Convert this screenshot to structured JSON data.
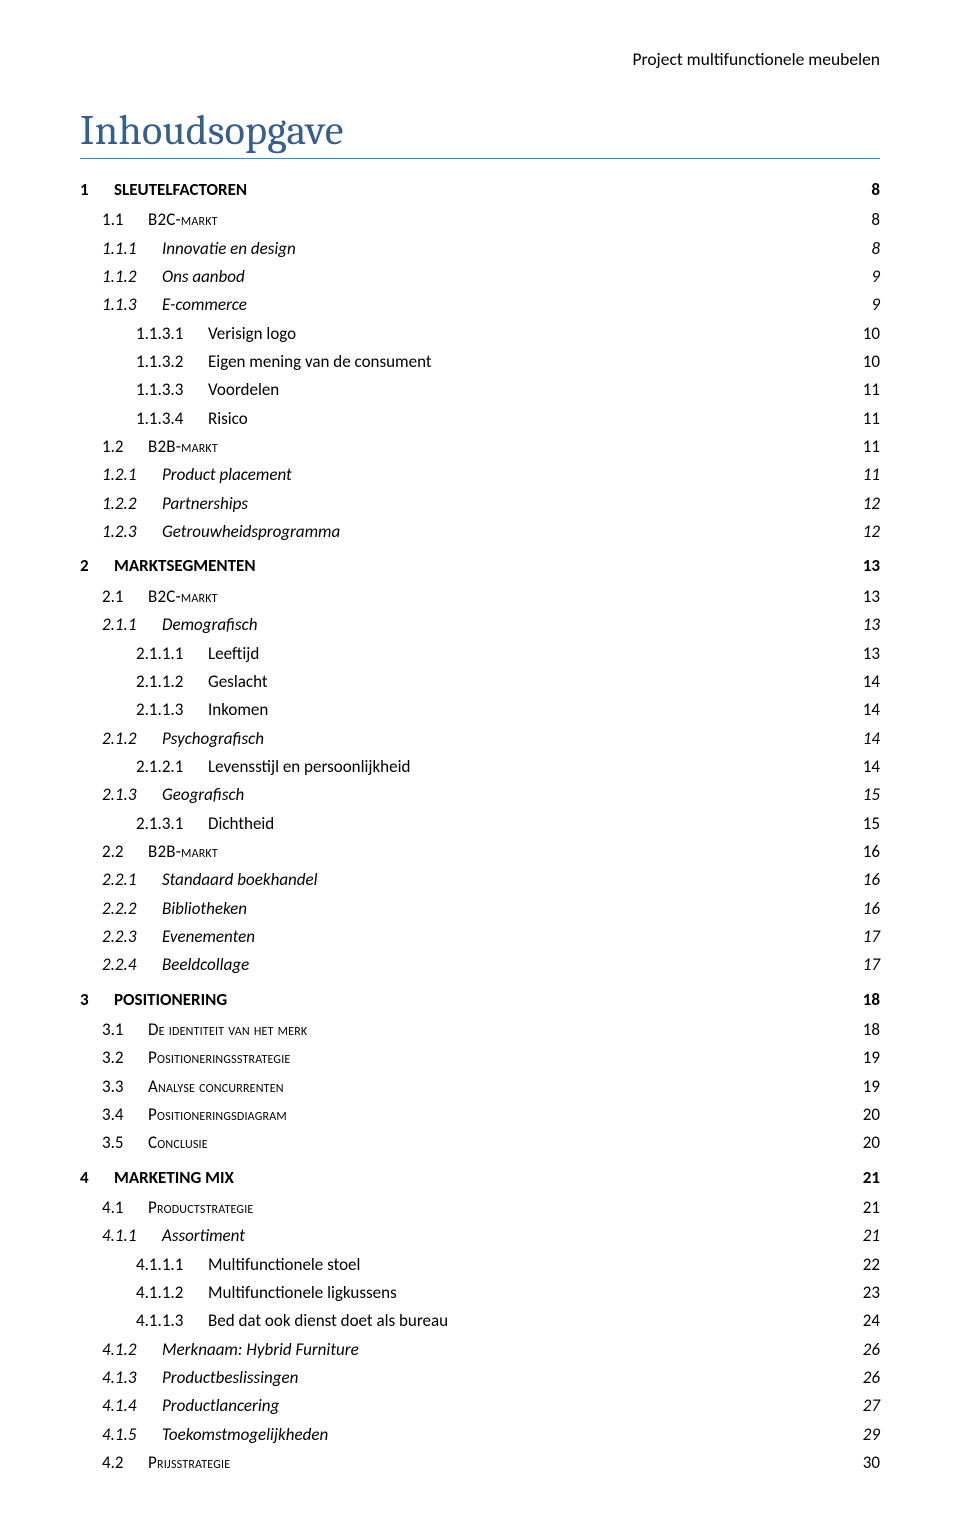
{
  "document": {
    "running_header": "Project multifunctionele meubelen",
    "title": "Inhoudsopgave",
    "colors": {
      "title_color": "#365f91",
      "rule_color": "#4f81bd",
      "text_color": "#000000",
      "background": "#ffffff"
    },
    "fonts": {
      "title_family": "Cambria, Georgia, serif",
      "body_family": "Calibri, Segoe UI, Arial, sans-serif",
      "title_size_pt": 32,
      "body_size_pt": 12
    }
  },
  "toc": [
    {
      "level": 1,
      "num": "1",
      "title": "SLEUTELFACTOREN",
      "page": "8"
    },
    {
      "level": 2,
      "num": "1.1",
      "title": "B2C-markt",
      "page": "8"
    },
    {
      "level": 3,
      "num": "1.1.1",
      "title": "Innovatie en design",
      "page": "8"
    },
    {
      "level": 3,
      "num": "1.1.2",
      "title": "Ons aanbod",
      "page": "9"
    },
    {
      "level": 3,
      "num": "1.1.3",
      "title": "E-commerce",
      "page": "9"
    },
    {
      "level": 4,
      "num": "1.1.3.1",
      "title": "Verisign logo",
      "page": "10"
    },
    {
      "level": 4,
      "num": "1.1.3.2",
      "title": "Eigen mening van de consument",
      "page": "10"
    },
    {
      "level": 4,
      "num": "1.1.3.3",
      "title": "Voordelen",
      "page": "11"
    },
    {
      "level": 4,
      "num": "1.1.3.4",
      "title": "Risico",
      "page": "11"
    },
    {
      "level": 2,
      "num": "1.2",
      "title": "B2B-markt",
      "page": "11"
    },
    {
      "level": 3,
      "num": "1.2.1",
      "title": "Product placement",
      "page": "11"
    },
    {
      "level": 3,
      "num": "1.2.2",
      "title": "Partnerships",
      "page": "12"
    },
    {
      "level": 3,
      "num": "1.2.3",
      "title": "Getrouwheidsprogramma",
      "page": "12"
    },
    {
      "level": 1,
      "num": "2",
      "title": "MARKTSEGMENTEN",
      "page": "13"
    },
    {
      "level": 2,
      "num": "2.1",
      "title": "B2C-markt",
      "page": "13"
    },
    {
      "level": 3,
      "num": "2.1.1",
      "title": "Demografisch",
      "page": "13"
    },
    {
      "level": 4,
      "num": "2.1.1.1",
      "title": "Leeftijd",
      "page": "13"
    },
    {
      "level": 4,
      "num": "2.1.1.2",
      "title": "Geslacht",
      "page": "14"
    },
    {
      "level": 4,
      "num": "2.1.1.3",
      "title": "Inkomen",
      "page": "14"
    },
    {
      "level": 3,
      "num": "2.1.2",
      "title": "Psychografisch",
      "page": "14"
    },
    {
      "level": 4,
      "num": "2.1.2.1",
      "title": "Levensstijl en persoonlijkheid",
      "page": "14"
    },
    {
      "level": 3,
      "num": "2.1.3",
      "title": "Geografisch",
      "page": "15"
    },
    {
      "level": 4,
      "num": "2.1.3.1",
      "title": "Dichtheid",
      "page": "15"
    },
    {
      "level": 2,
      "num": "2.2",
      "title": "B2B-markt",
      "page": "16"
    },
    {
      "level": 3,
      "num": "2.2.1",
      "title": "Standaard boekhandel",
      "page": "16"
    },
    {
      "level": 3,
      "num": "2.2.2",
      "title": "Bibliotheken",
      "page": "16"
    },
    {
      "level": 3,
      "num": "2.2.3",
      "title": "Evenementen",
      "page": "17"
    },
    {
      "level": 3,
      "num": "2.2.4",
      "title": "Beeldcollage",
      "page": "17"
    },
    {
      "level": 1,
      "num": "3",
      "title": "POSITIONERING",
      "page": "18"
    },
    {
      "level": 2,
      "num": "3.1",
      "title": "De identiteit van het merk",
      "page": "18"
    },
    {
      "level": 2,
      "num": "3.2",
      "title": "Positioneringsstrategie",
      "page": "19"
    },
    {
      "level": 2,
      "num": "3.3",
      "title": "Analyse concurrenten",
      "page": "19"
    },
    {
      "level": 2,
      "num": "3.4",
      "title": "Positioneringsdiagram",
      "page": "20"
    },
    {
      "level": 2,
      "num": "3.5",
      "title": "Conclusie",
      "page": "20"
    },
    {
      "level": 1,
      "num": "4",
      "title": "MARKETING MIX",
      "page": "21"
    },
    {
      "level": 2,
      "num": "4.1",
      "title": "Productstrategie",
      "page": "21"
    },
    {
      "level": 3,
      "num": "4.1.1",
      "title": "Assortiment",
      "page": "21"
    },
    {
      "level": 4,
      "num": "4.1.1.1",
      "title": "Multifunctionele stoel",
      "page": "22"
    },
    {
      "level": 4,
      "num": "4.1.1.2",
      "title": "Multifunctionele ligkussens",
      "page": "23"
    },
    {
      "level": 4,
      "num": "4.1.1.3",
      "title": "Bed dat ook dienst doet als bureau",
      "page": "24"
    },
    {
      "level": 3,
      "num": "4.1.2",
      "title": "Merknaam: Hybrid Furniture",
      "page": "26"
    },
    {
      "level": 3,
      "num": "4.1.3",
      "title": "Productbeslissingen",
      "page": "26"
    },
    {
      "level": 3,
      "num": "4.1.4",
      "title": "Productlancering",
      "page": "27"
    },
    {
      "level": 3,
      "num": "4.1.5",
      "title": "Toekomstmogelijkheden",
      "page": "29"
    },
    {
      "level": 2,
      "num": "4.2",
      "title": "Prijsstrategie",
      "page": "30"
    }
  ]
}
